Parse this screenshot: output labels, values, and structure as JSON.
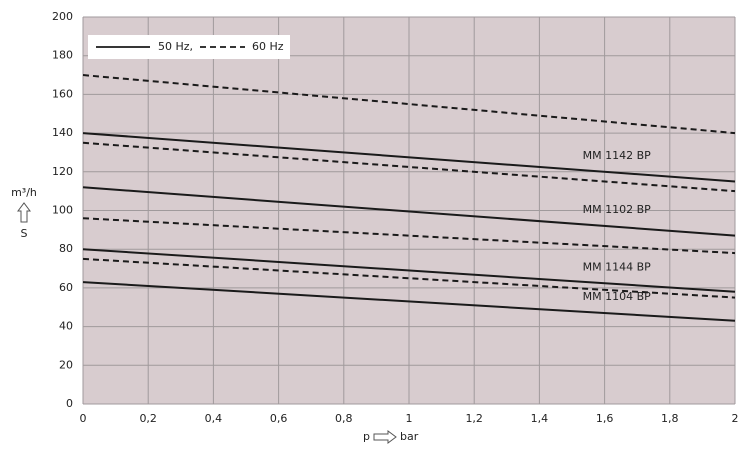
{
  "chart_data": {
    "type": "line",
    "xlim": [
      0,
      2
    ],
    "ylim": [
      0,
      200
    ],
    "xticks": [
      0,
      {
        "value": 0.2,
        "label": "0,2"
      },
      {
        "value": 0.4,
        "label": "0,4"
      },
      {
        "value": 0.6,
        "label": "0,6"
      },
      {
        "value": 0.8,
        "label": "0,8"
      },
      1,
      {
        "value": 1.2,
        "label": "1,2"
      },
      {
        "value": 1.4,
        "label": "1,4"
      },
      {
        "value": 1.6,
        "label": "1,6"
      },
      {
        "value": 1.8,
        "label": "1,8"
      },
      2
    ],
    "yticks": [
      0,
      20,
      40,
      60,
      80,
      100,
      120,
      140,
      160,
      180,
      200
    ],
    "grid": true,
    "xlabel": {
      "left": "p",
      "right": "bar"
    },
    "ylabel": {
      "top": "m³/h",
      "bottom": "S"
    },
    "legend_position": "upper left",
    "legend": [
      {
        "label": "50 Hz,",
        "style": "solid"
      },
      {
        "label": "60 Hz",
        "style": "dashed"
      }
    ],
    "line_color": "#1a1a1a",
    "plot_background": "#d8cccf",
    "series": [
      {
        "label": "MM 1142 BP",
        "x": [
          0,
          2
        ],
        "values_50hz": [
          140,
          115
        ],
        "values_60hz": [
          170,
          140
        ]
      },
      {
        "label": "MM 1102 BP",
        "x": [
          0,
          2
        ],
        "values_50hz": [
          112,
          87
        ],
        "values_60hz": [
          135,
          110
        ]
      },
      {
        "label": "MM 1144 BP",
        "x": [
          0,
          2
        ],
        "values_50hz": [
          80,
          58
        ],
        "values_60hz": [
          96,
          78
        ]
      },
      {
        "label": "MM 1104 BP",
        "x": [
          0,
          2
        ],
        "values_50hz": [
          63,
          43
        ],
        "values_60hz": [
          75,
          55
        ]
      }
    ]
  }
}
